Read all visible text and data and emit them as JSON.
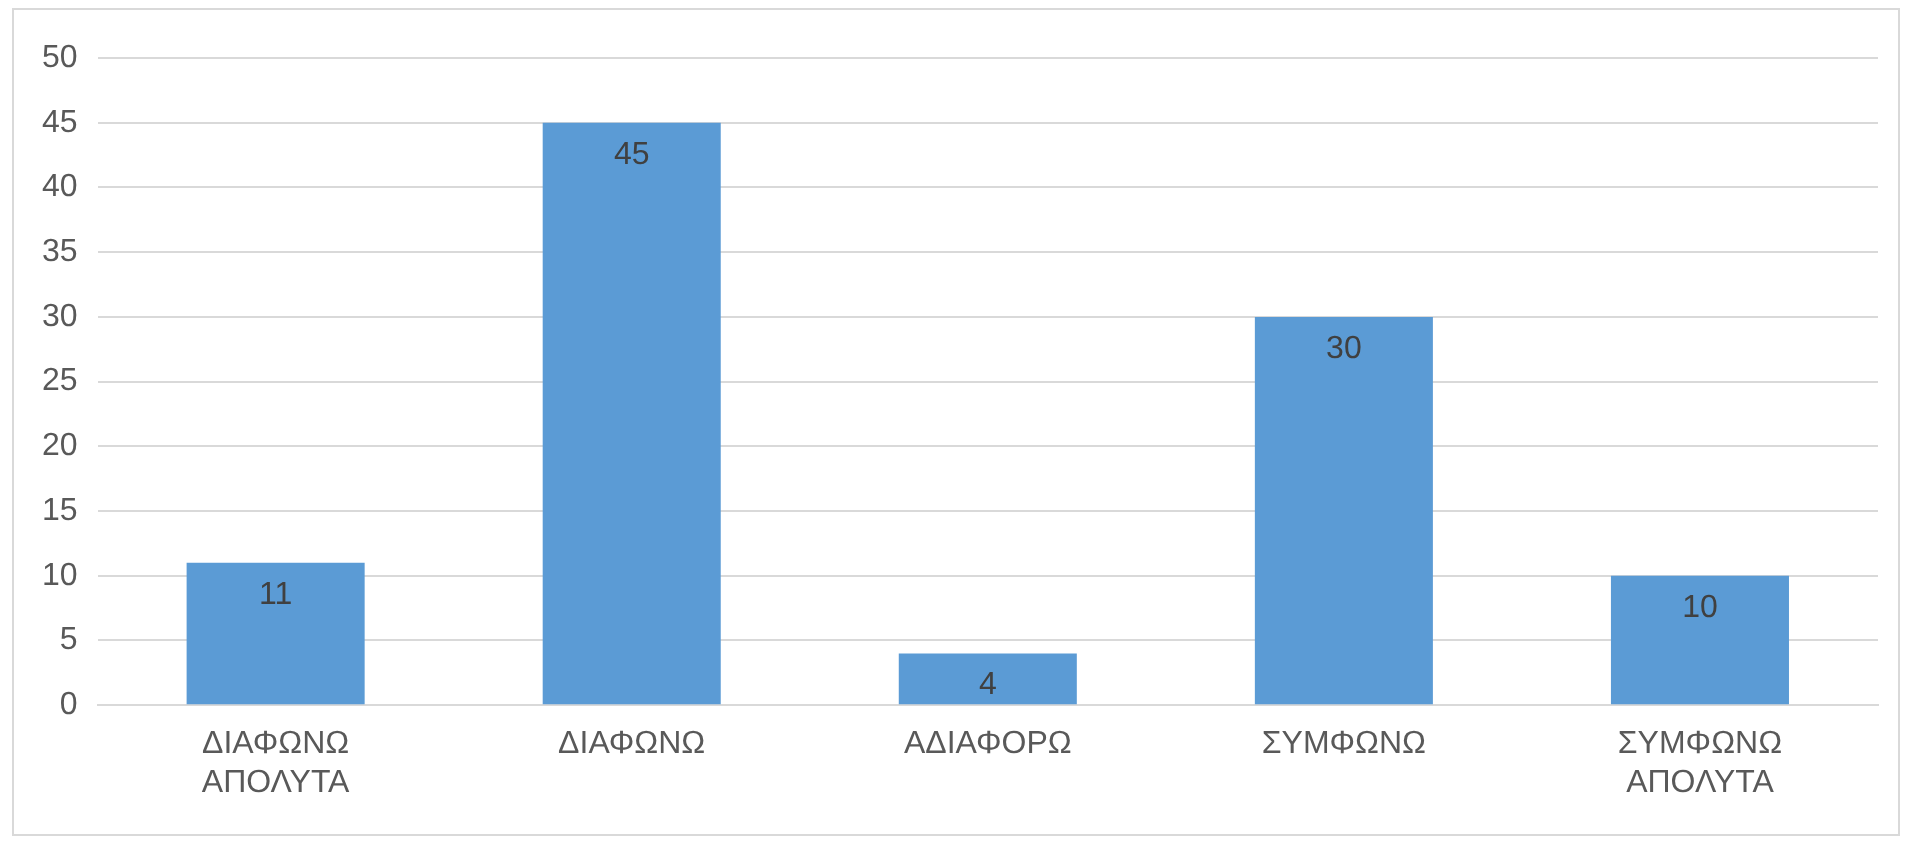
{
  "chart_data": {
    "type": "bar",
    "categories": [
      "ΔΙΑΦΩΝΩ ΑΠΟΛΥΤΑ",
      "ΔΙΑΦΩΝΩ",
      "ΑΔΙΑΦΟΡΩ",
      "ΣΥΜΦΩΝΩ",
      "ΣΥΜΦΩΝΩ ΑΠΟΛΥΤΑ"
    ],
    "values": [
      11,
      45,
      4,
      30,
      10
    ],
    "color": "#5b9bd5",
    "ylim": [
      0,
      50
    ],
    "yticks": [
      0,
      5,
      10,
      15,
      20,
      25,
      30,
      35,
      40,
      45,
      50
    ],
    "grid": "y",
    "data_labels": true,
    "legend": false
  }
}
